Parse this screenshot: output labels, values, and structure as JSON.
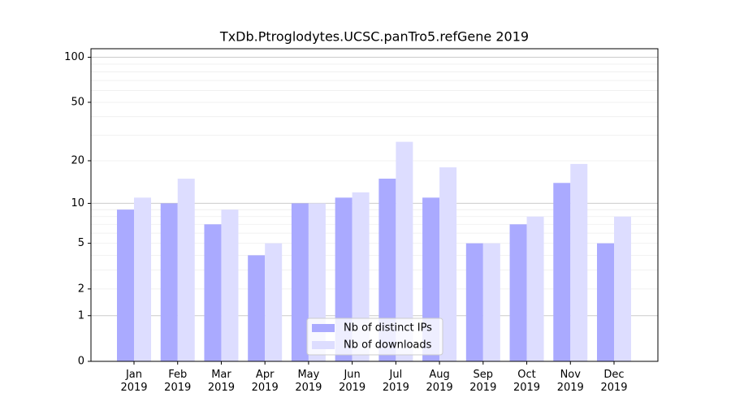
{
  "chart_data": {
    "type": "bar",
    "title": "TxDb.Ptroglodytes.UCSC.panTro5.refGene 2019",
    "categories": [
      "Jan\n2019",
      "Feb\n2019",
      "Mar\n2019",
      "Apr\n2019",
      "May\n2019",
      "Jun\n2019",
      "Jul\n2019",
      "Aug\n2019",
      "Sep\n2019",
      "Oct\n2019",
      "Nov\n2019",
      "Dec\n2019"
    ],
    "series": [
      {
        "name": "Nb of distinct IPs",
        "color": "#aaaaff",
        "values": [
          9,
          10,
          7,
          4,
          10,
          11,
          15,
          11,
          5,
          7,
          14,
          5
        ]
      },
      {
        "name": "Nb of downloads",
        "color": "#ddddff",
        "values": [
          11,
          15,
          9,
          5,
          10,
          12,
          27,
          18,
          5,
          8,
          19,
          8
        ]
      }
    ],
    "yscale": "log1p",
    "ylim": [
      0,
      114
    ],
    "yticks": [
      0,
      1,
      2,
      5,
      10,
      20,
      50,
      100
    ],
    "major_grid": [
      1,
      10,
      100
    ],
    "minor_grid": [
      2,
      3,
      4,
      5,
      6,
      7,
      8,
      9,
      20,
      30,
      40,
      50,
      60,
      70,
      80,
      90
    ],
    "legend": "lower center"
  }
}
